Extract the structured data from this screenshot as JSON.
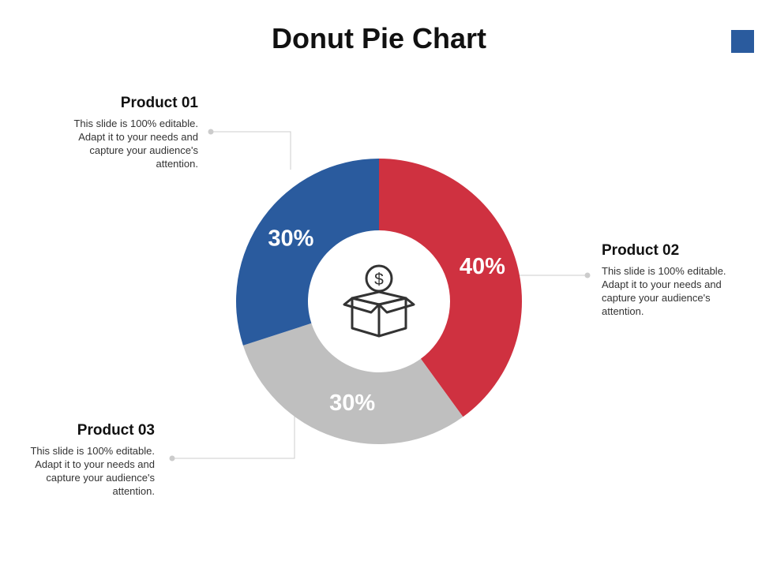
{
  "title": "Donut Pie Chart",
  "colors": {
    "accent": "#2a5b9e",
    "product_01": "#2a5b9e",
    "product_02": "#cf3140",
    "product_03": "#bfbfbf",
    "connector": "#cccccc"
  },
  "center_icon": "money-box-icon",
  "chart_data": {
    "type": "pie",
    "style": "donut",
    "categories": [
      "Product 01",
      "Product 02",
      "Product 03"
    ],
    "values": [
      30,
      40,
      30
    ],
    "value_labels": [
      "30%",
      "40%",
      "30%"
    ]
  },
  "products": [
    {
      "name": "Product 01",
      "description": "This slide is 100% editable. Adapt it to your needs and  capture your audience's attention."
    },
    {
      "name": "Product 02",
      "description": "This slide is 100% editable. Adapt it to your needs and  capture your audience's attention."
    },
    {
      "name": "Product 03",
      "description": "This slide is 100% editable. Adapt it to your needs and  capture your audience's attention."
    }
  ]
}
